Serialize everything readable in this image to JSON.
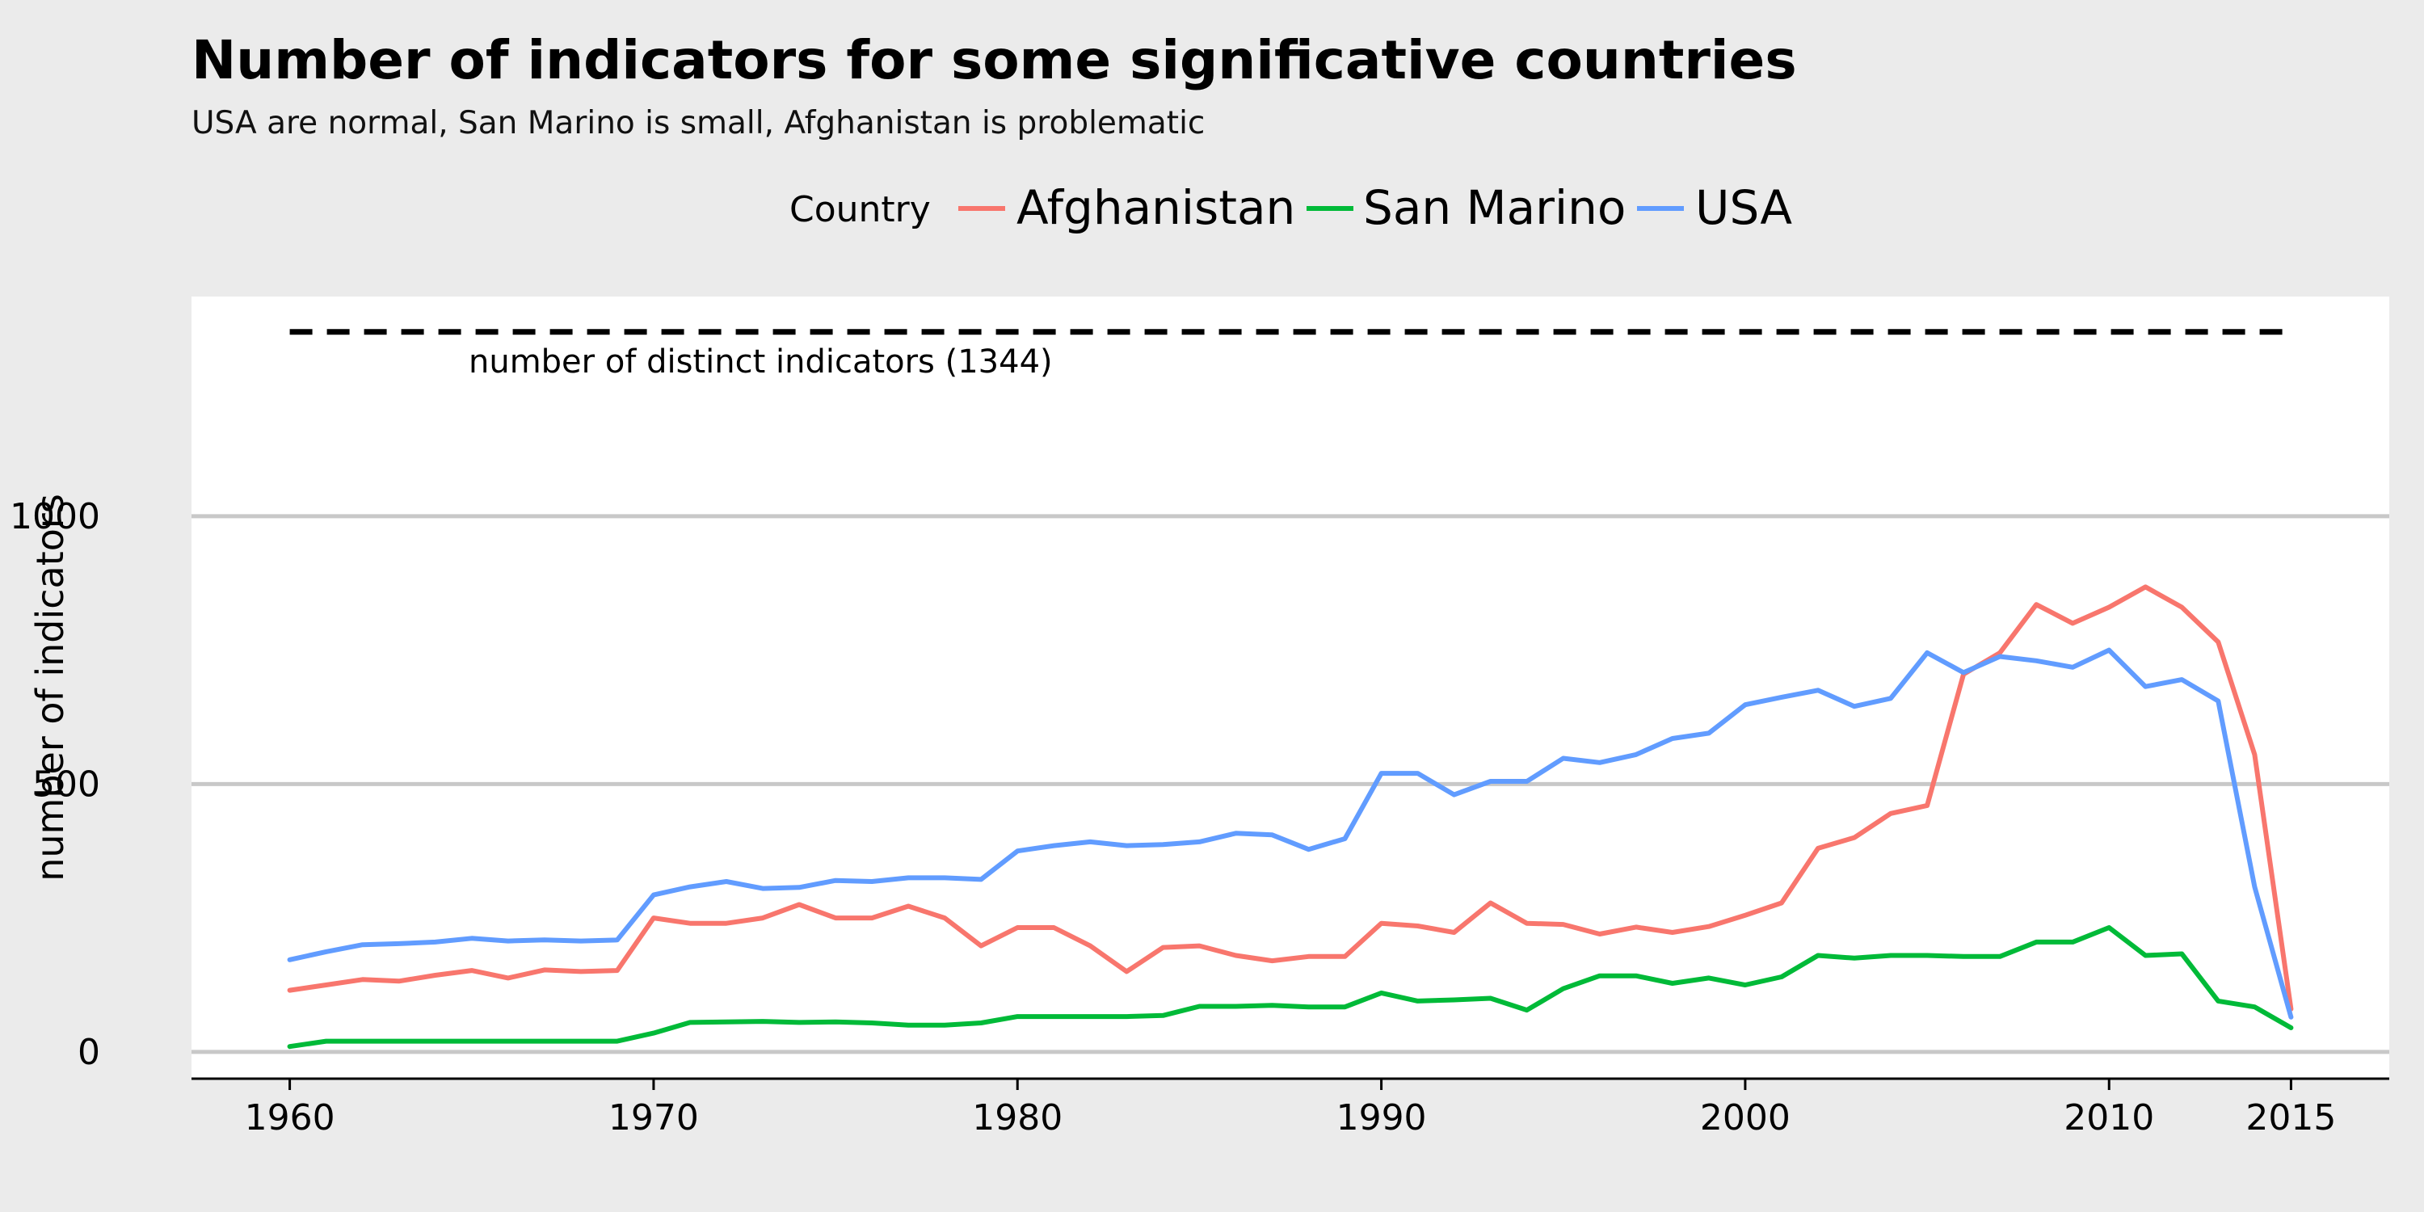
{
  "chart_data": {
    "type": "line",
    "title": "Number of indicators for some significative countries",
    "subtitle": "USA are normal, San Marino is small, Afghanistan is problematic",
    "xlabel": "",
    "ylabel": "number of indicators",
    "xlim": [
      1957.3,
      2017.7
    ],
    "ylim": [
      -50,
      1410
    ],
    "x_ticks": [
      1960,
      1970,
      1980,
      1990,
      2000,
      2010,
      2015
    ],
    "y_ticks": [
      0,
      500,
      1000
    ],
    "grid": "horizontal major",
    "legend": {
      "title": "Country",
      "placement": "top",
      "entries": [
        "Afghanistan",
        "San Marino",
        "USA"
      ]
    },
    "reference_line": {
      "y": 1344,
      "x_range": [
        1960,
        2015
      ],
      "style": "dashed",
      "label": "number of distinct indicators (1344)"
    },
    "x": [
      1960,
      1961,
      1962,
      1963,
      1964,
      1965,
      1966,
      1967,
      1968,
      1969,
      1970,
      1971,
      1972,
      1973,
      1974,
      1975,
      1976,
      1977,
      1978,
      1979,
      1980,
      1981,
      1982,
      1983,
      1984,
      1985,
      1986,
      1987,
      1988,
      1989,
      1990,
      1991,
      1992,
      1993,
      1994,
      1995,
      1996,
      1997,
      1998,
      1999,
      2000,
      2001,
      2002,
      2003,
      2004,
      2005,
      2006,
      2007,
      2008,
      2009,
      2010,
      2011,
      2012,
      2013,
      2014,
      2015
    ],
    "series": [
      {
        "name": "Afghanistan",
        "color": "#f8766d",
        "values": [
          115,
          125,
          135,
          132,
          143,
          152,
          138,
          153,
          150,
          152,
          250,
          240,
          240,
          250,
          275,
          250,
          250,
          272,
          250,
          198,
          232,
          232,
          198,
          150,
          195,
          198,
          180,
          170,
          178,
          178,
          240,
          235,
          223,
          278,
          240,
          238,
          220,
          233,
          223,
          234,
          255,
          278,
          380,
          400,
          445,
          460,
          705,
          745,
          835,
          800,
          830,
          868,
          830,
          765,
          555,
          80
        ]
      },
      {
        "name": "San Marino",
        "color": "#00ba38",
        "values": [
          10,
          20,
          20,
          20,
          20,
          20,
          20,
          20,
          20,
          20,
          35,
          55,
          56,
          57,
          55,
          56,
          54,
          50,
          50,
          54,
          66,
          66,
          66,
          66,
          68,
          85,
          85,
          87,
          84,
          84,
          110,
          95,
          97,
          100,
          78,
          118,
          142,
          142,
          128,
          138,
          125,
          140,
          180,
          175,
          180,
          180,
          178,
          178,
          205,
          205,
          232,
          180,
          183,
          95,
          84,
          45
        ]
      },
      {
        "name": "USA",
        "color": "#619cff",
        "values": [
          172,
          187,
          200,
          202,
          205,
          212,
          207,
          209,
          207,
          209,
          293,
          308,
          318,
          305,
          307,
          320,
          318,
          325,
          325,
          322,
          375,
          385,
          392,
          385,
          387,
          392,
          408,
          405,
          378,
          398,
          520,
          520,
          480,
          505,
          505,
          548,
          540,
          555,
          585,
          595,
          648,
          662,
          675,
          645,
          660,
          745,
          708,
          738,
          730,
          718,
          750,
          682,
          695,
          655,
          308,
          65
        ]
      }
    ]
  }
}
